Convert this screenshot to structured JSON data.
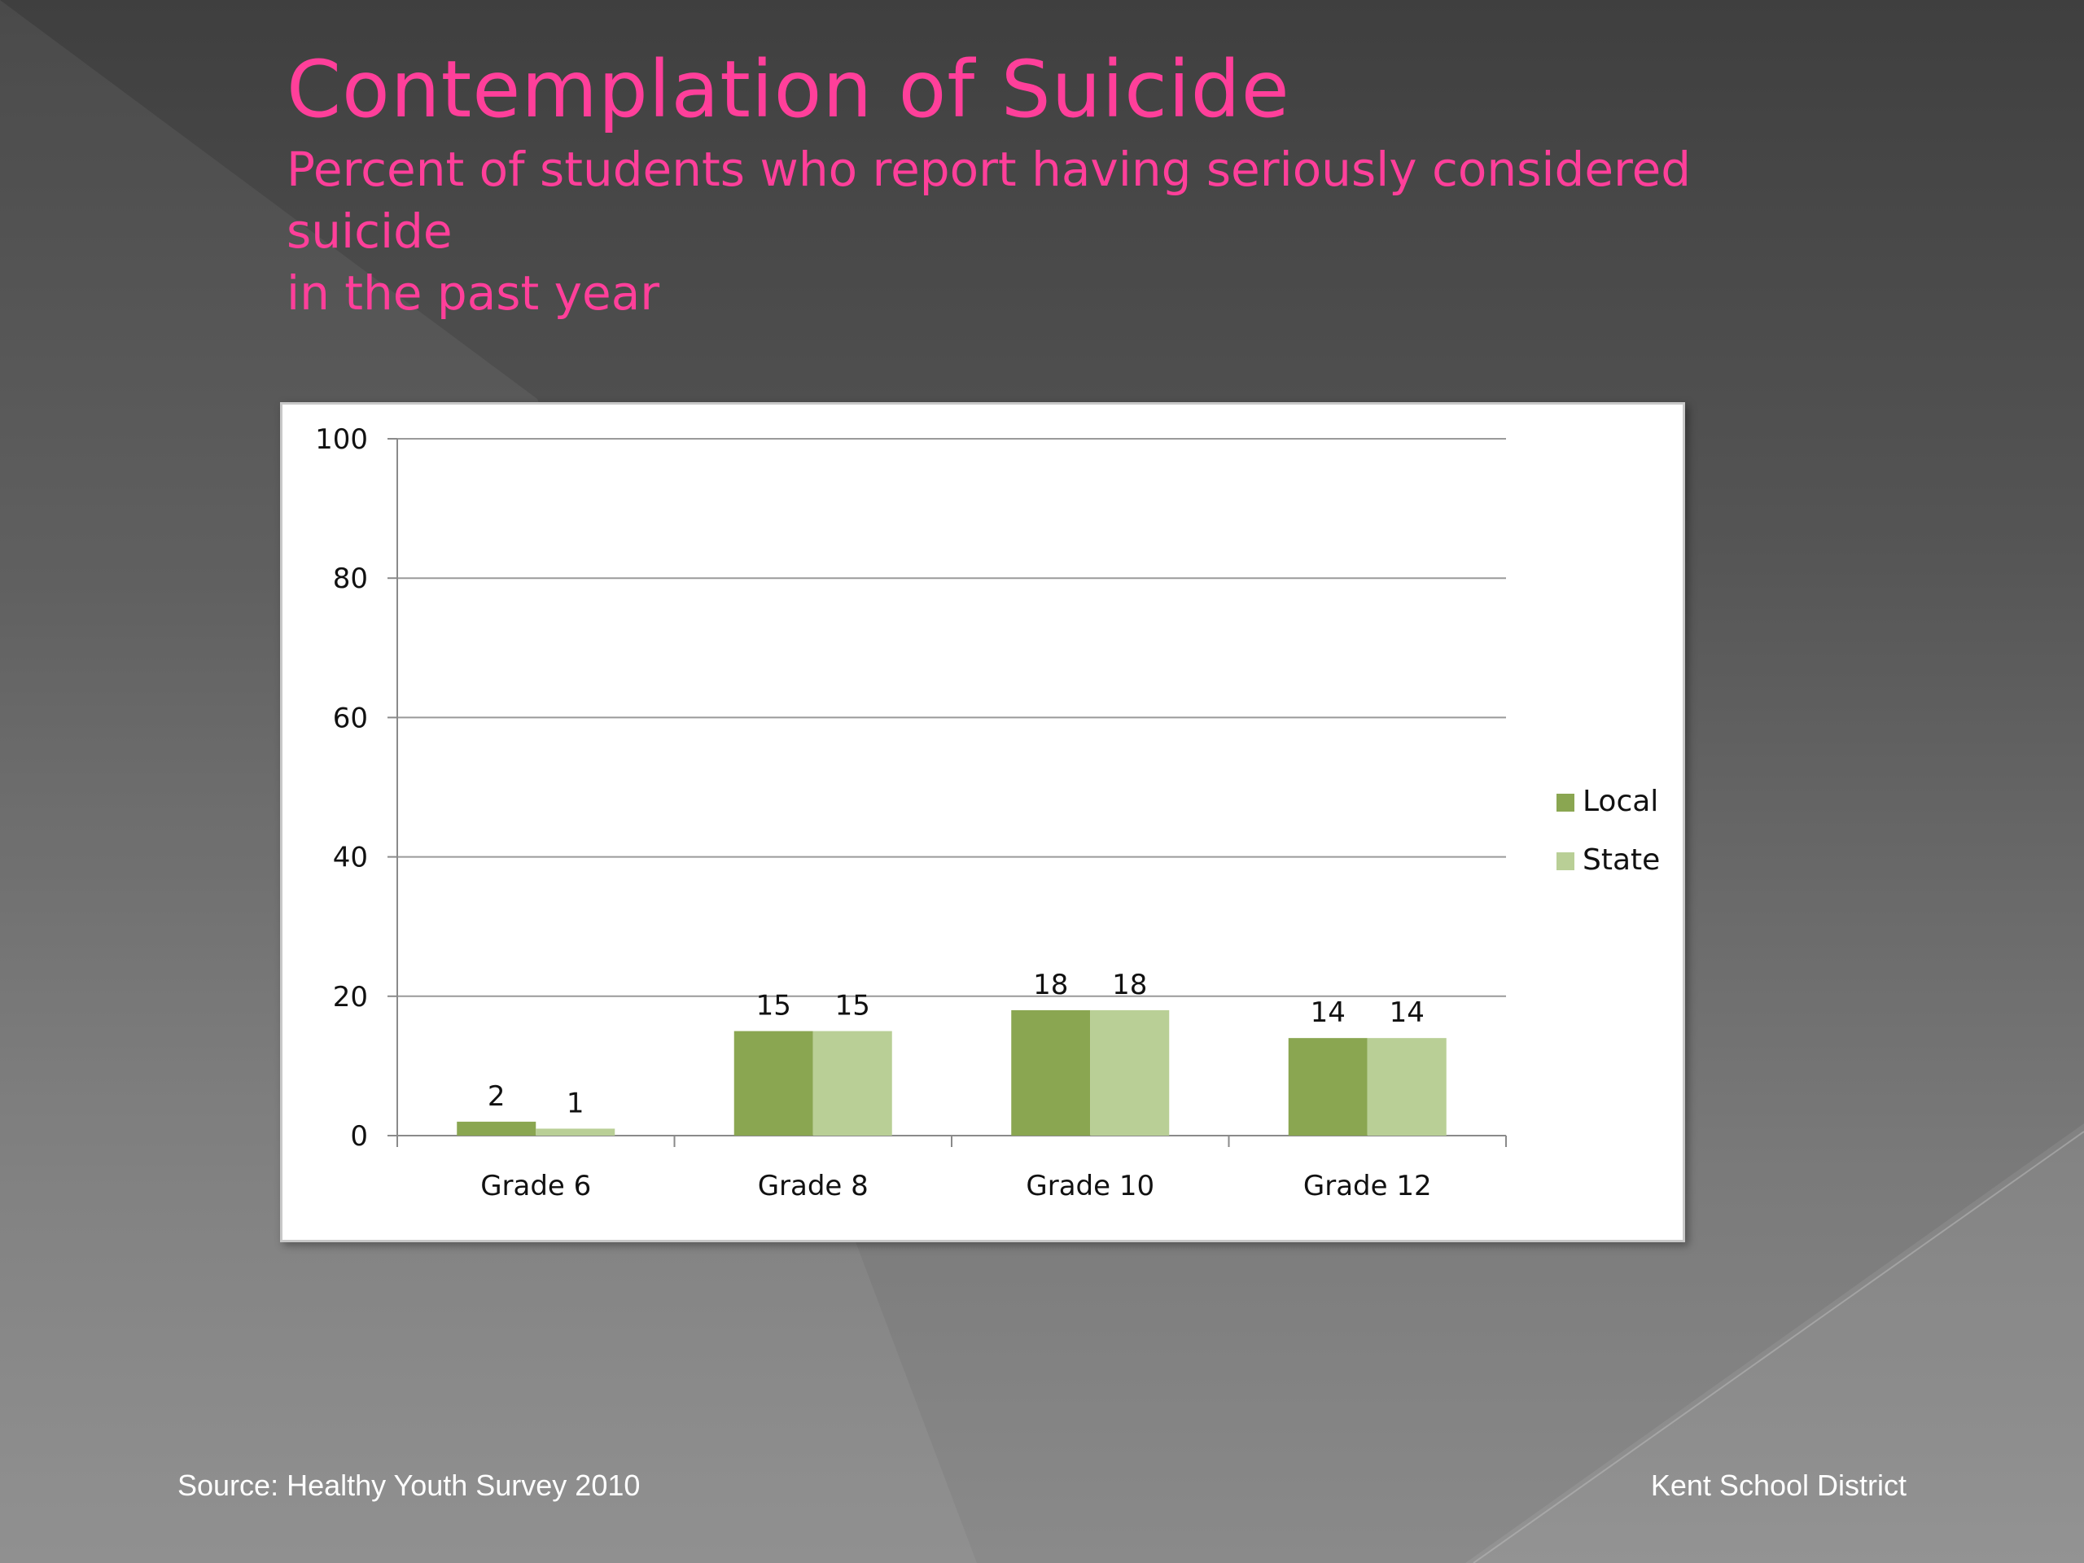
{
  "slide": {
    "title": "Contemplation of Suicide",
    "subtitle": "Percent of students who report having seriously considered\nsuicide\nin the past year",
    "source": "Source: Healthy Youth Survey 2010",
    "organization": "Kent School District"
  },
  "colors": {
    "title": "#ff3f9a",
    "local": "#8aa651",
    "state": "#b9cf96"
  },
  "chart_data": {
    "type": "bar",
    "categories": [
      "Grade 6",
      "Grade 8",
      "Grade 10",
      "Grade 12"
    ],
    "series": [
      {
        "name": "Local",
        "values": [
          2,
          15,
          18,
          14
        ]
      },
      {
        "name": "State",
        "values": [
          1,
          15,
          18,
          14
        ]
      }
    ],
    "yticks": [
      0,
      20,
      40,
      60,
      80,
      100
    ],
    "ylim": [
      0,
      100
    ],
    "grid": true,
    "legend": "right"
  }
}
